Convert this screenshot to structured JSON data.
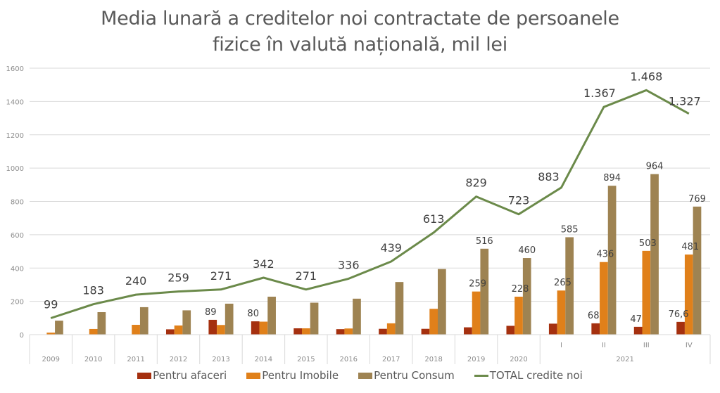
{
  "chart_data": {
    "type": "bar",
    "title_lines": [
      "Media lunară a creditelor noi contractate de persoanele",
      "fizice în valută națională, mil lei"
    ],
    "xlabel": "",
    "ylabel": "",
    "ylim": [
      0,
      1600
    ],
    "yticks": [
      "0",
      "200",
      "400",
      "600",
      "800",
      "1000",
      "1200",
      "1400",
      "1600"
    ],
    "ytick_values": [
      0,
      200,
      400,
      600,
      800,
      1000,
      1200,
      1400,
      1600
    ],
    "grid": true,
    "legend_position": "bottom",
    "categories": [
      "2009",
      "2010",
      "2011",
      "2012",
      "2013",
      "2014",
      "2015",
      "2016",
      "2017",
      "2018",
      "2019",
      "2020",
      "I",
      "II",
      "III",
      "IV"
    ],
    "group_labels": [
      {
        "label": "2021",
        "categories": [
          "I",
          "II",
          "III",
          "IV"
        ]
      }
    ],
    "series": [
      {
        "name": "Pentru afaceri",
        "type": "bar",
        "color": "#A5300F",
        "values": [
          0,
          0,
          0,
          32,
          89,
          80,
          38,
          33,
          35,
          35,
          44,
          53,
          66,
          68,
          47,
          76.6
        ],
        "labels": [
          null,
          null,
          null,
          null,
          "89",
          "80",
          null,
          null,
          null,
          null,
          null,
          null,
          null,
          "68",
          "47",
          "76,6"
        ]
      },
      {
        "name": "Pentru Imobile",
        "type": "bar",
        "color": "#E0801A",
        "values": [
          12,
          34,
          59,
          55,
          58,
          78,
          38,
          37,
          68,
          155,
          259,
          228,
          265,
          436,
          503,
          481
        ],
        "labels": [
          null,
          null,
          null,
          null,
          null,
          null,
          null,
          null,
          null,
          null,
          "259",
          "228",
          "265",
          "436",
          "503",
          "481"
        ]
      },
      {
        "name": "Pentru Consum",
        "type": "bar",
        "color": "#9E8352",
        "values": [
          84,
          135,
          165,
          146,
          186,
          228,
          192,
          216,
          316,
          394,
          516,
          460,
          585,
          894,
          964,
          769
        ],
        "labels": [
          null,
          null,
          null,
          null,
          null,
          null,
          null,
          null,
          null,
          null,
          "516",
          "460",
          "585",
          "894",
          "964",
          "769"
        ]
      },
      {
        "name": "TOTAL credite noi",
        "type": "line",
        "color": "#6B8A4A",
        "values": [
          99,
          183,
          240,
          259,
          271,
          342,
          271,
          336,
          439,
          613,
          829,
          723,
          883,
          1367,
          1468,
          1327
        ],
        "labels": [
          "99",
          "183",
          "240",
          "259",
          "271",
          "342",
          "271",
          "336",
          "439",
          "613",
          "829",
          "723",
          "883",
          "1.367",
          "1.468",
          "1.327"
        ]
      }
    ]
  }
}
